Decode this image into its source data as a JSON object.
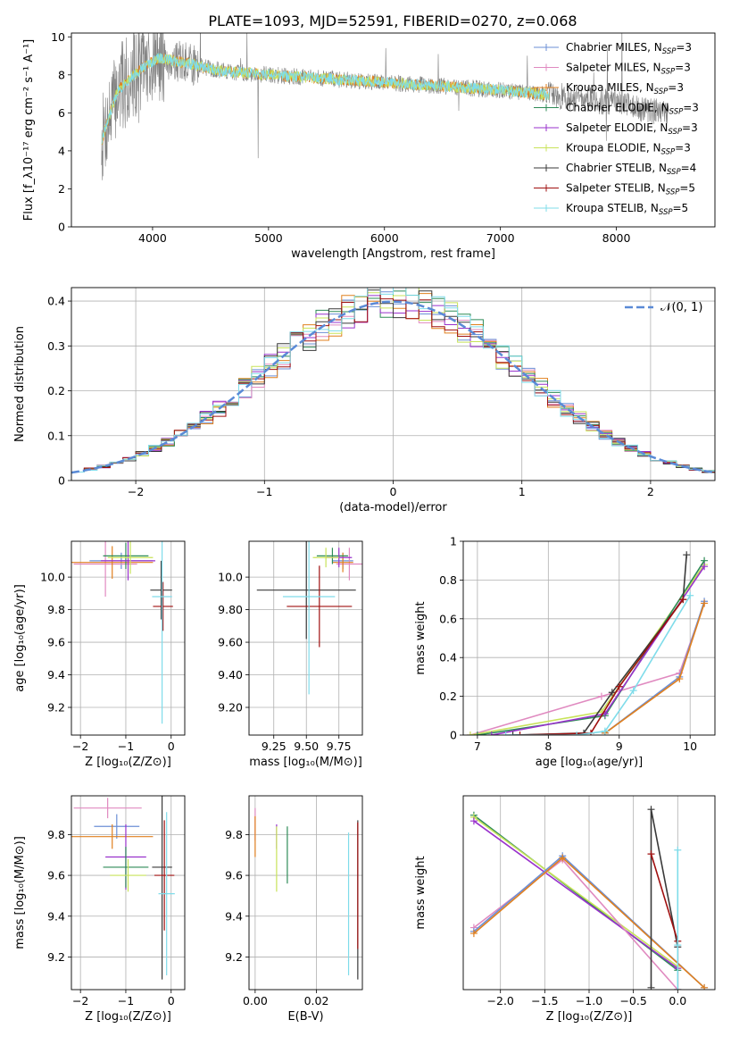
{
  "figure_title": "PLATE=1093, MJD=52591, FIBERID=0270, z=0.068",
  "palette": {
    "chabrier_miles": "#6b8fd6",
    "salpeter_miles": "#e08ac0",
    "kroupa_miles": "#e0801f",
    "chabrier_elodie": "#2e8b57",
    "salpeter_elodie": "#9932cc",
    "kroupa_elodie": "#c8e35a",
    "chabrier_stelib": "#3a3a3a",
    "salpeter_stelib": "#a01010",
    "kroupa_stelib": "#7fdcea",
    "data_gray": "#808080",
    "gauss": "#5a8ad6"
  },
  "chart_data": [
    {
      "id": "spectrum",
      "type": "line",
      "xlabel": "wavelength [Angstrom, rest frame]",
      "ylabel": "Flux [f_λ10⁻¹⁷ erg cm⁻² s⁻¹ A⁻¹]",
      "xlim": [
        3300,
        8850
      ],
      "ylim": [
        0,
        10.2
      ],
      "xticks": [
        4000,
        5000,
        6000,
        7000,
        8000
      ],
      "yticks": [
        0,
        2,
        4,
        6,
        8,
        10
      ],
      "grid": false,
      "legend_position": "top-right",
      "legend": [
        {
          "label": "Chabrier MILES, N",
          "sub": "SSP",
          "tail": "=3",
          "color": "chabrier_miles"
        },
        {
          "label": "Salpeter MILES, N",
          "sub": "SSP",
          "tail": "=3",
          "color": "salpeter_miles"
        },
        {
          "label": "Kroupa MILES, N",
          "sub": "SSP",
          "tail": "=3",
          "color": "kroupa_miles"
        },
        {
          "label": "Chabrier ELODIE, N",
          "sub": "SSP",
          "tail": "=3",
          "color": "chabrier_elodie"
        },
        {
          "label": "Salpeter ELODIE, N",
          "sub": "SSP",
          "tail": "=3",
          "color": "salpeter_elodie"
        },
        {
          "label": "Kroupa ELODIE, N",
          "sub": "SSP",
          "tail": "=3",
          "color": "kroupa_elodie"
        },
        {
          "label": "Chabrier STELIB, N",
          "sub": "SSP",
          "tail": "=4",
          "color": "chabrier_stelib"
        },
        {
          "label": "Salpeter STELIB, N",
          "sub": "SSP",
          "tail": "=5",
          "color": "salpeter_stelib"
        },
        {
          "label": "Kroupa STELIB, N",
          "sub": "SSP",
          "tail": "=5",
          "color": "kroupa_stelib"
        }
      ],
      "continuum": {
        "x": [
          3560,
          3700,
          3900,
          4050,
          4300,
          4600,
          5000,
          5500,
          6000,
          6500,
          7000,
          7500,
          8000,
          8400
        ],
        "y": [
          4.5,
          7.2,
          8.3,
          8.9,
          8.6,
          8.2,
          8.0,
          7.8,
          7.6,
          7.4,
          7.2,
          6.9,
          6.5,
          6.0
        ]
      },
      "data_range": [
        3560,
        8450
      ],
      "model_range": [
        3560,
        7420
      ]
    },
    {
      "id": "residual_hist",
      "type": "line",
      "xlabel": "(data-model)/error",
      "ylabel": "Normed distribution",
      "xlim": [
        -2.5,
        2.5
      ],
      "ylim": [
        0,
        0.43
      ],
      "xticks": [
        -2,
        -1,
        0,
        1,
        2
      ],
      "yticks": [
        0.0,
        0.1,
        0.2,
        0.3,
        0.4
      ],
      "grid": true,
      "legend_position": "top-right",
      "legend_label": "𝒩(0, 1)",
      "bin_width": 0.1
    },
    {
      "id": "age_vs_Z",
      "type": "scatter",
      "xlabel": "Z [log₁₀(Z/Z⊙)]",
      "ylabel": "age  [log₁₀(age/yr)]",
      "xlim": [
        -2.2,
        0.3
      ],
      "ylim": [
        9.03,
        10.22
      ],
      "xticks": [
        -2,
        -1,
        0
      ],
      "yticks": [
        9.2,
        9.4,
        9.6,
        9.8,
        10.0
      ],
      "grid": true,
      "points": [
        {
          "x": -1.1,
          "xerr": 0.7,
          "y": 10.1,
          "yerr": 0.05,
          "c": "chabrier_miles"
        },
        {
          "x": -1.45,
          "xerr": 0.7,
          "y": 10.08,
          "yerr": 0.2,
          "c": "salpeter_miles"
        },
        {
          "x": -1.3,
          "xerr": 0.9,
          "y": 10.09,
          "yerr": 0.1,
          "c": "kroupa_miles"
        },
        {
          "x": -1.0,
          "xerr": 0.5,
          "y": 10.13,
          "yerr": 0.08,
          "c": "chabrier_elodie"
        },
        {
          "x": -0.95,
          "xerr": 0.6,
          "y": 10.1,
          "yerr": 0.12,
          "c": "salpeter_elodie"
        },
        {
          "x": -0.9,
          "xerr": 0.5,
          "y": 10.12,
          "yerr": 0.1,
          "c": "kroupa_elodie"
        },
        {
          "x": -0.22,
          "xerr": 0.24,
          "y": 9.92,
          "yerr": 0.18,
          "c": "chabrier_stelib"
        },
        {
          "x": -0.18,
          "xerr": 0.22,
          "y": 9.82,
          "yerr": 0.15,
          "c": "salpeter_stelib"
        },
        {
          "x": -0.2,
          "xerr": 0.22,
          "y": 9.88,
          "yerr": 0.78,
          "c": "kroupa_stelib"
        }
      ]
    },
    {
      "id": "age_vs_mass",
      "type": "scatter",
      "xlabel": "mass [log₁₀(M/M⊙)]",
      "ylabel": "",
      "xlim": [
        9.06,
        9.93
      ],
      "ylim": [
        9.03,
        10.22
      ],
      "xticks": [
        9.25,
        9.5,
        9.75
      ],
      "yticks": [
        9.2,
        9.4,
        9.6,
        9.8,
        10.0
      ],
      "grid": true,
      "points": [
        {
          "x": 9.78,
          "xerr": 0.08,
          "y": 10.1,
          "yerr": 0.05,
          "c": "chabrier_miles"
        },
        {
          "x": 9.83,
          "xerr": 0.1,
          "y": 10.08,
          "yerr": 0.1,
          "c": "salpeter_miles"
        },
        {
          "x": 9.78,
          "xerr": 0.08,
          "y": 10.09,
          "yerr": 0.06,
          "c": "kroupa_miles"
        },
        {
          "x": 9.7,
          "xerr": 0.12,
          "y": 10.13,
          "yerr": 0.05,
          "c": "chabrier_elodie"
        },
        {
          "x": 9.75,
          "xerr": 0.1,
          "y": 10.12,
          "yerr": 0.06,
          "c": "salpeter_elodie"
        },
        {
          "x": 9.65,
          "xerr": 0.1,
          "y": 10.12,
          "yerr": 0.06,
          "c": "kroupa_elodie"
        },
        {
          "x": 9.5,
          "xerr": 0.38,
          "y": 9.92,
          "yerr": 0.3,
          "c": "chabrier_stelib"
        },
        {
          "x": 9.6,
          "xerr": 0.25,
          "y": 9.82,
          "yerr": 0.25,
          "c": "salpeter_stelib"
        },
        {
          "x": 9.52,
          "xerr": 0.2,
          "y": 9.88,
          "yerr": 0.6,
          "c": "kroupa_stelib"
        }
      ]
    },
    {
      "id": "weight_vs_age",
      "type": "line",
      "xlabel": "age  [log₁₀(age/yr)]",
      "ylabel": "mass weight",
      "xlim": [
        6.8,
        10.35
      ],
      "ylim": [
        0,
        1.0
      ],
      "xticks": [
        7,
        8,
        9,
        10
      ],
      "yticks": [
        0.0,
        0.2,
        0.4,
        0.6,
        0.8,
        1.0
      ],
      "grid": true,
      "series": [
        {
          "c": "salpeter_miles",
          "x": [
            6.9,
            8.75,
            9.85,
            10.2
          ],
          "y": [
            0.0,
            0.2,
            0.32,
            0.68
          ]
        },
        {
          "c": "chabrier_miles",
          "x": [
            8.8,
            9.85,
            10.2
          ],
          "y": [
            0.01,
            0.3,
            0.69
          ]
        },
        {
          "c": "kroupa_miles",
          "x": [
            8.8,
            9.85,
            10.2
          ],
          "y": [
            0.01,
            0.29,
            0.68
          ]
        },
        {
          "c": "kroupa_elodie",
          "x": [
            6.9,
            8.75,
            10.2
          ],
          "y": [
            0.0,
            0.12,
            0.88
          ]
        },
        {
          "c": "chabrier_elodie",
          "x": [
            7.0,
            8.8,
            10.2
          ],
          "y": [
            0.0,
            0.1,
            0.9
          ]
        },
        {
          "c": "salpeter_elodie",
          "x": [
            7.2,
            8.8,
            10.2
          ],
          "y": [
            0.0,
            0.11,
            0.87
          ]
        },
        {
          "c": "chabrier_stelib",
          "x": [
            7.5,
            8.5,
            8.9,
            9.9,
            9.95
          ],
          "y": [
            0.0,
            0.01,
            0.22,
            0.7,
            0.93
          ]
        },
        {
          "c": "salpeter_stelib",
          "x": [
            7.6,
            8.6,
            9.0,
            9.9
          ],
          "y": [
            0.0,
            0.01,
            0.25,
            0.7
          ]
        },
        {
          "c": "kroupa_stelib",
          "x": [
            7.4,
            8.4,
            8.8,
            9.2,
            10.0
          ],
          "y": [
            0.0,
            0.0,
            0.02,
            0.23,
            0.72
          ]
        }
      ]
    },
    {
      "id": "mass_vs_Z",
      "type": "scatter",
      "xlabel": "Z [log₁₀(Z/Z⊙)]",
      "ylabel": "mass [log₁₀(M/M⊙)]",
      "xlim": [
        -2.2,
        0.3
      ],
      "ylim": [
        9.04,
        9.99
      ],
      "xticks": [
        -2,
        -1,
        0
      ],
      "yticks": [
        9.2,
        9.4,
        9.6,
        9.8
      ],
      "grid": true,
      "points": [
        {
          "x": -1.4,
          "xerr": 0.75,
          "y": 9.93,
          "yerr": 0.05,
          "c": "salpeter_miles"
        },
        {
          "x": -1.2,
          "xerr": 0.5,
          "y": 9.84,
          "yerr": 0.06,
          "c": "chabrier_miles"
        },
        {
          "x": -1.3,
          "xerr": 0.9,
          "y": 9.79,
          "yerr": 0.06,
          "c": "kroupa_miles"
        },
        {
          "x": -1.0,
          "xerr": 0.45,
          "y": 9.69,
          "yerr": 0.16,
          "c": "salpeter_elodie"
        },
        {
          "x": -1.0,
          "xerr": 0.5,
          "y": 9.64,
          "yerr": 0.1,
          "c": "chabrier_elodie"
        },
        {
          "x": -0.95,
          "xerr": 0.4,
          "y": 9.6,
          "yerr": 0.08,
          "c": "kroupa_elodie"
        },
        {
          "x": -0.2,
          "xerr": 0.22,
          "y": 9.64,
          "yerr": 0.55,
          "c": "chabrier_stelib"
        },
        {
          "x": -0.15,
          "xerr": 0.22,
          "y": 9.6,
          "yerr": 0.27,
          "c": "salpeter_stelib"
        },
        {
          "x": -0.1,
          "xerr": 0.18,
          "y": 9.51,
          "yerr": 0.4,
          "c": "kroupa_stelib"
        }
      ]
    },
    {
      "id": "mass_vs_ebv",
      "type": "scatter",
      "xlabel": "E(B-V)",
      "ylabel": "",
      "xlim": [
        -0.002,
        0.035
      ],
      "ylim": [
        9.04,
        9.99
      ],
      "xticks": [
        0.0,
        0.02
      ],
      "yticks": [
        9.2,
        9.4,
        9.6,
        9.8
      ],
      "grid": true,
      "points": [
        {
          "x": 0.0,
          "y": 9.85,
          "yerr": 0.08,
          "c": "salpeter_miles"
        },
        {
          "x": 0.0,
          "y": 9.79,
          "yerr": 0.1,
          "c": "kroupa_miles"
        },
        {
          "x": 0.007,
          "y": 9.79,
          "yerr": 0.06,
          "c": "salpeter_elodie"
        },
        {
          "x": 0.007,
          "y": 9.68,
          "yerr": 0.16,
          "c": "kroupa_elodie"
        },
        {
          "x": 0.0105,
          "y": 9.7,
          "yerr": 0.14,
          "c": "chabrier_elodie"
        },
        {
          "x": 0.0305,
          "y": 9.46,
          "yerr": 0.35,
          "c": "kroupa_stelib"
        },
        {
          "x": 0.0335,
          "y": 9.48,
          "yerr": 0.39,
          "c": "chabrier_stelib"
        },
        {
          "x": 0.0335,
          "y": 9.55,
          "yerr": 0.31,
          "c": "salpeter_stelib"
        }
      ]
    },
    {
      "id": "weight_vs_Z",
      "type": "line",
      "xlabel": "Z [log₁₀(Z/Z⊙)]",
      "ylabel": "mass weight",
      "xlim": [
        -2.42,
        0.42
      ],
      "ylim": [
        0,
        1.0
      ],
      "xticks": [
        -2.0,
        -1.5,
        -1.0,
        -0.5,
        0.0
      ],
      "grid": true,
      "series": [
        {
          "c": "chabrier_elodie",
          "x": [
            -2.3,
            0.0
          ],
          "y": [
            0.9,
            0.1
          ]
        },
        {
          "c": "kroupa_elodie",
          "x": [
            -2.3,
            0.0
          ],
          "y": [
            0.89,
            0.12
          ]
        },
        {
          "c": "salpeter_elodie",
          "x": [
            -2.3,
            0.0
          ],
          "y": [
            0.87,
            0.11
          ]
        },
        {
          "c": "salpeter_miles",
          "x": [
            -2.3,
            -1.3,
            0.0
          ],
          "y": [
            0.32,
            0.67,
            0.0
          ]
        },
        {
          "c": "chabrier_miles",
          "x": [
            -2.3,
            -1.3,
            0.3
          ],
          "y": [
            0.3,
            0.69,
            0.01
          ]
        },
        {
          "c": "kroupa_miles",
          "x": [
            -2.3,
            -1.3,
            0.3
          ],
          "y": [
            0.29,
            0.68,
            0.01
          ]
        },
        {
          "c": "chabrier_stelib",
          "x": [
            -0.3,
            -0.3,
            0.0
          ],
          "y": [
            0.01,
            0.93,
            0.22
          ]
        },
        {
          "c": "salpeter_stelib",
          "x": [
            -0.3,
            0.0,
            0.0
          ],
          "y": [
            0.7,
            0.25,
            0.0
          ]
        },
        {
          "c": "kroupa_stelib",
          "x": [
            0.0,
            0.0,
            0.0
          ],
          "y": [
            0.72,
            0.23,
            0.0
          ]
        }
      ]
    }
  ]
}
